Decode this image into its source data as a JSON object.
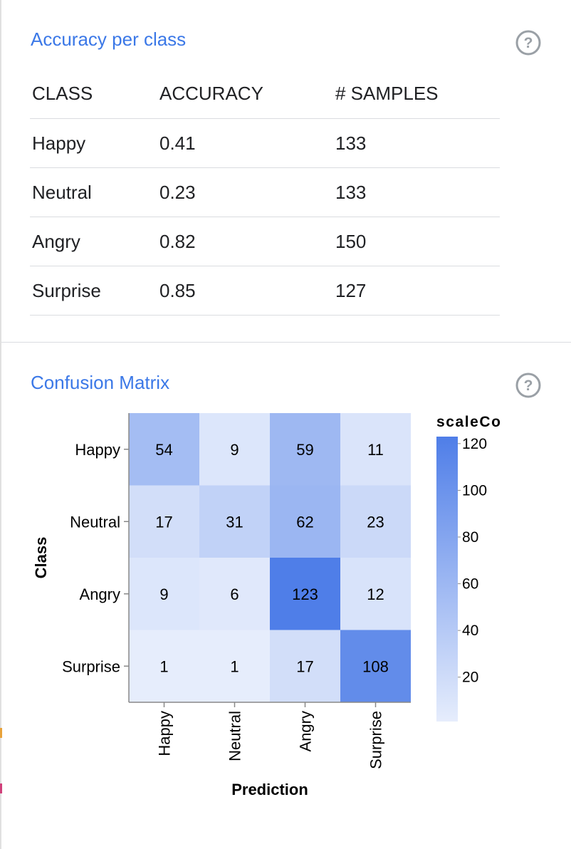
{
  "accuracy_panel": {
    "title": "Accuracy per class",
    "help_icon": "help-circle-icon",
    "columns": [
      "CLASS",
      "ACCURACY",
      "# SAMPLES"
    ],
    "rows": [
      {
        "class": "Happy",
        "accuracy": "0.41",
        "samples": "133"
      },
      {
        "class": "Neutral",
        "accuracy": "0.23",
        "samples": "133"
      },
      {
        "class": "Angry",
        "accuracy": "0.82",
        "samples": "150"
      },
      {
        "class": "Surprise",
        "accuracy": "0.85",
        "samples": "127"
      }
    ]
  },
  "confusion_panel": {
    "title": "Confusion Matrix",
    "help_icon": "help-circle-icon"
  },
  "chart_data": {
    "type": "heatmap",
    "title": "",
    "xlabel": "Prediction",
    "ylabel": "Class",
    "x": [
      "Happy",
      "Neutral",
      "Angry",
      "Surprise"
    ],
    "y": [
      "Happy",
      "Neutral",
      "Angry",
      "Surprise"
    ],
    "values": [
      [
        54,
        9,
        59,
        11
      ],
      [
        17,
        31,
        62,
        23
      ],
      [
        9,
        6,
        123,
        12
      ],
      [
        1,
        1,
        17,
        108
      ]
    ],
    "legend": {
      "title": "scaleCo",
      "ticks": [
        120,
        100,
        80,
        60,
        40,
        20
      ],
      "range": [
        1,
        123
      ],
      "color_low": "#e6edfc",
      "color_high": "#4f7ee8"
    }
  },
  "colors": {
    "accent": "#3b78e7",
    "divider": "#dadce0"
  }
}
